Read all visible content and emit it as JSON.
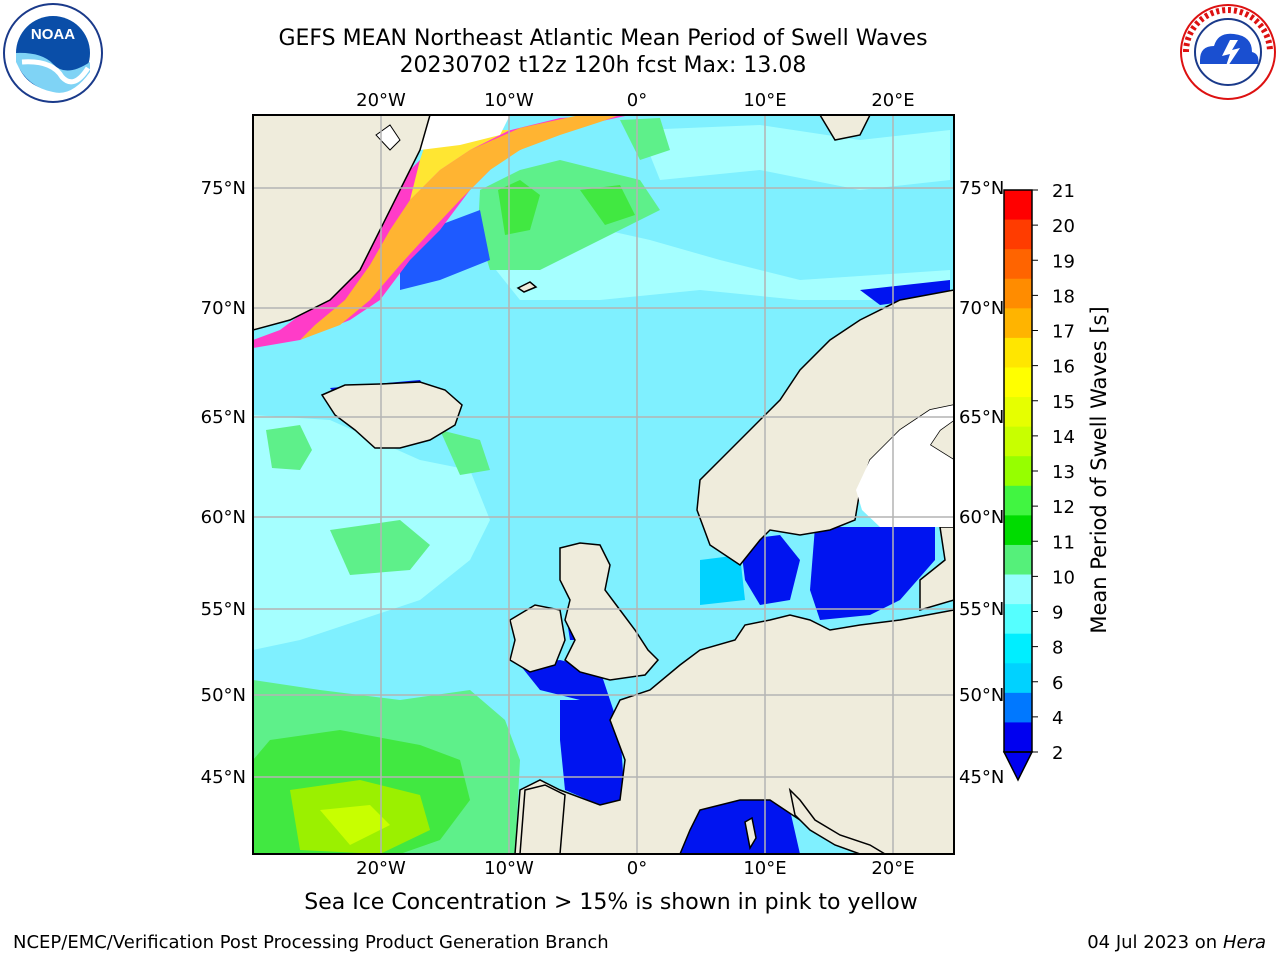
{
  "header": {
    "title_line1": "GEFS MEAN Northeast Atlantic Mean Period of Swell Waves",
    "title_line2": "20230702 t12z 120h fcst   Max: 13.08"
  },
  "logos": {
    "left": {
      "icon": "noaa-logo-icon",
      "text": "NOAA",
      "ring_text": "NATIONAL OCEANIC AND ATMOSPHERIC ADMINISTRATION · U.S. DEPARTMENT OF COMMERCE"
    },
    "right": {
      "icon": "nws-logo-icon",
      "ring_text": "NATIONAL WEATHER SERVICE"
    }
  },
  "map": {
    "lon_labels": [
      "20°W",
      "10°W",
      "0°",
      "10°E",
      "20°E"
    ],
    "lat_labels": [
      "75°N",
      "70°N",
      "65°N",
      "60°N",
      "55°N",
      "50°N",
      "45°N"
    ],
    "land_color": "#efecdc",
    "ocean_base_color": "#7ff0ff"
  },
  "colorbar": {
    "label": "Mean Period of Swell Waves [s]",
    "ticks": [
      "21",
      "20",
      "19",
      "18",
      "17",
      "16",
      "15",
      "14",
      "13",
      "12",
      "11",
      "10",
      "9",
      "8",
      "6",
      "4",
      "2"
    ],
    "colors_top_to_bottom": [
      "#ff0000",
      "#ff3c00",
      "#ff6400",
      "#ff8c00",
      "#ffb400",
      "#ffe600",
      "#ffff00",
      "#e6ff00",
      "#c8ff00",
      "#96ff00",
      "#41f541",
      "#00dc00",
      "#55f07a",
      "#96ffff",
      "#55ffff",
      "#00eeff",
      "#00d2ff",
      "#0078ff",
      "#0000f0"
    ],
    "extend": "min"
  },
  "note": "Sea Ice Concentration > 15% is shown in pink to yellow",
  "footer": {
    "left": "NCEP/EMC/Verification Post Processing Product Generation Branch",
    "right_date": "04 Jul 2023 on",
    "right_machine": "Hera"
  }
}
